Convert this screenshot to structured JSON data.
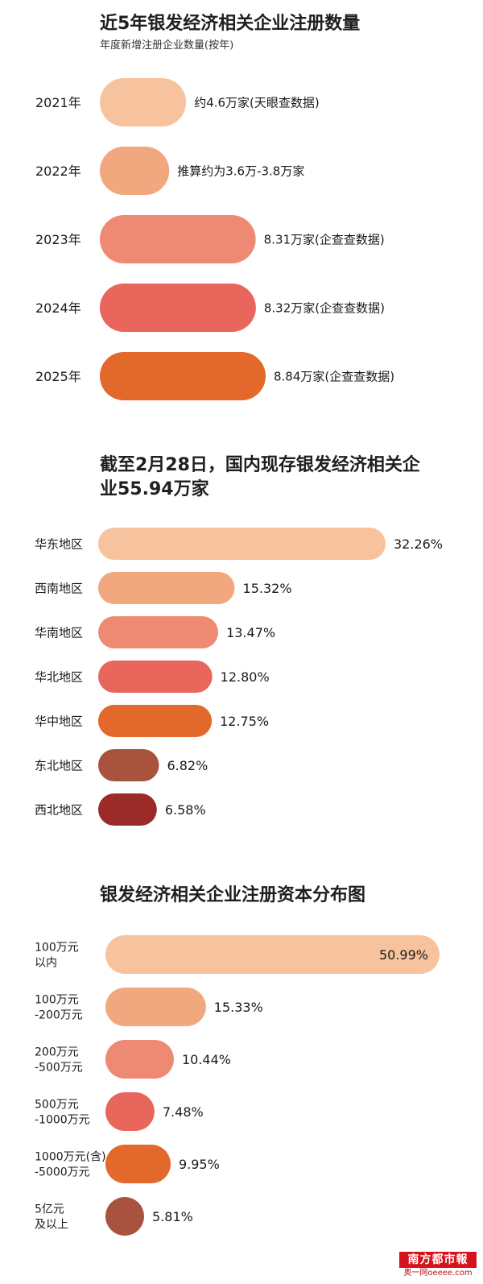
{
  "chart_data": [
    {
      "type": "bar",
      "orientation": "horizontal",
      "title": "近5年银发经济相关企业注册数量",
      "subtitle": "年度新增注册企业数量(按年)",
      "categories": [
        "2021年",
        "2022年",
        "2023年",
        "2024年",
        "2025年"
      ],
      "values": [
        4.6,
        3.7,
        8.31,
        8.32,
        8.84
      ],
      "value_labels": [
        "约4.6万家(天眼查数据)",
        "推算约为3.6万-3.8万家",
        "8.31万家(企查查数据)",
        "8.32万家(企查查数据)",
        "8.84万家(企查查数据)"
      ],
      "colors": [
        "#f6c39e",
        "#f2a87f",
        "#ee8a74",
        "#e8665c",
        "#e3682b"
      ]
    },
    {
      "type": "bar",
      "orientation": "horizontal",
      "title": "截至2月28日，国内现存银发经济相关企业55.94万家",
      "title_lines": [
        "截至2月28日，国内现存银发经济相关企",
        "业55.94万家"
      ],
      "categories": [
        "华东地区",
        "西南地区",
        "华南地区",
        "华北地区",
        "华中地区",
        "东北地区",
        "西北地区"
      ],
      "values": [
        32.26,
        15.32,
        13.47,
        12.8,
        12.75,
        6.82,
        6.58
      ],
      "value_labels": [
        "32.26%",
        "15.32%",
        "13.47%",
        "12.80%",
        "12.75%",
        "6.82%",
        "6.58%"
      ],
      "colors": [
        "#f6c39e",
        "#f2a87f",
        "#ee8a74",
        "#e8665c",
        "#e3682b",
        "#a8533e",
        "#9a2b29"
      ]
    },
    {
      "type": "bar",
      "orientation": "horizontal",
      "title": "银发经济相关企业注册资本分布图",
      "categories": [
        [
          "100万元",
          "以内"
        ],
        [
          "100万元",
          "-200万元"
        ],
        [
          "200万元",
          "-500万元"
        ],
        [
          "500万元",
          "-1000万元"
        ],
        [
          "1000万元(含)",
          "-5000万元"
        ],
        [
          "5亿元",
          "及以上"
        ]
      ],
      "values": [
        50.99,
        15.33,
        10.44,
        7.48,
        9.95,
        5.81
      ],
      "value_labels": [
        "50.99%",
        "15.33%",
        "10.44%",
        "7.48%",
        "9.95%",
        "5.81%"
      ],
      "colors": [
        "#f6c39e",
        "#f2a87f",
        "#ee8a74",
        "#e8665c",
        "#e3682b",
        "#a8533e"
      ]
    }
  ],
  "watermark": {
    "top": "南方都市報",
    "bottom": "奥一网oeeee.com"
  }
}
